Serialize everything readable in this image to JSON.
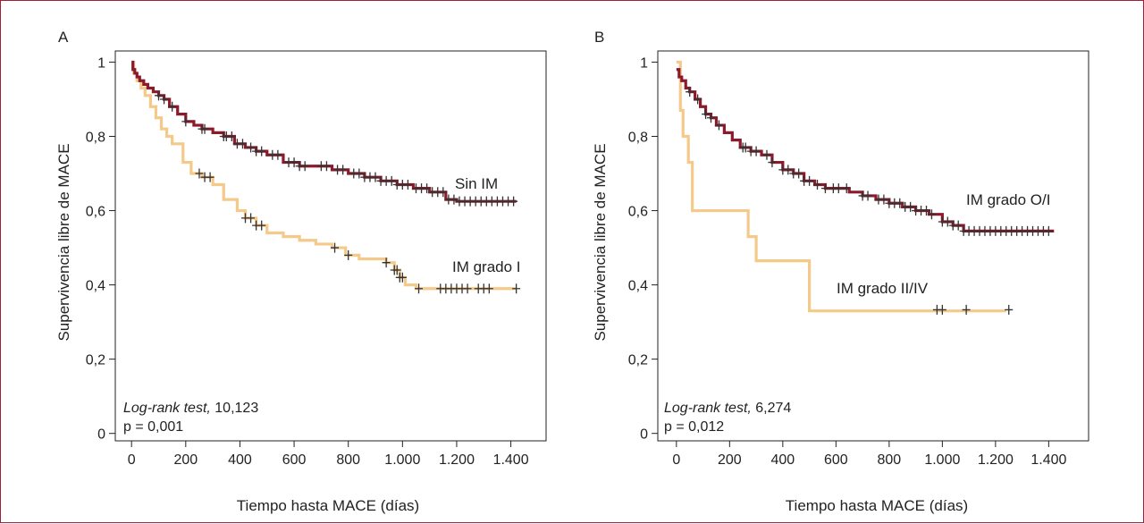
{
  "colors": {
    "frame": "#a0203a",
    "series_dark": "#8b1a2b",
    "series_light": "#f5c98a",
    "censor": "#333333"
  },
  "chart_data": [
    {
      "panel": "A",
      "type": "line",
      "xlabel": "Tiempo hasta MACE (días)",
      "ylabel": "Supervivencia libre de MACE",
      "xlim": [
        -60,
        1530
      ],
      "ylim": [
        -0.02,
        1.03
      ],
      "xticks": [
        0,
        200,
        400,
        600,
        800,
        1000,
        1200,
        1400
      ],
      "xtick_labels": [
        "0",
        "200",
        "400",
        "600",
        "800",
        "1.000",
        "1.200",
        "1.400"
      ],
      "yticks": [
        0,
        0.2,
        0.4,
        0.6,
        0.8,
        1
      ],
      "ytick_labels": [
        "0",
        "0,2",
        "0,4",
        "0,6",
        "0,8",
        "1"
      ],
      "annotation": {
        "test": "Log-rank test,",
        "stat": " 10,123",
        "p": "p = 0,001"
      },
      "series": [
        {
          "name": "Sin IM",
          "color": "#8b1a2b",
          "x": [
            0,
            5,
            12,
            20,
            30,
            45,
            60,
            80,
            100,
            120,
            140,
            170,
            200,
            230,
            260,
            300,
            340,
            380,
            420,
            460,
            500,
            560,
            620,
            680,
            740,
            800,
            860,
            920,
            980,
            1040,
            1100,
            1160,
            1200,
            1420
          ],
          "y": [
            1.0,
            0.98,
            0.97,
            0.96,
            0.95,
            0.94,
            0.93,
            0.92,
            0.91,
            0.9,
            0.88,
            0.86,
            0.84,
            0.83,
            0.82,
            0.81,
            0.8,
            0.78,
            0.77,
            0.76,
            0.75,
            0.73,
            0.72,
            0.72,
            0.71,
            0.7,
            0.69,
            0.68,
            0.67,
            0.66,
            0.65,
            0.63,
            0.625,
            0.625
          ],
          "censor_x": [
            100,
            120,
            150,
            200,
            260,
            270,
            340,
            350,
            370,
            390,
            410,
            440,
            460,
            480,
            520,
            540,
            580,
            600,
            620,
            640,
            700,
            720,
            760,
            780,
            820,
            840,
            860,
            880,
            900,
            920,
            940,
            960,
            980,
            1000,
            1020,
            1050,
            1070,
            1090,
            1110,
            1130,
            1150,
            1170,
            1190,
            1210,
            1230,
            1250,
            1270,
            1290,
            1310,
            1330,
            1350,
            1370,
            1390,
            1410
          ],
          "end_label": "Sin IM"
        },
        {
          "name": "IM grado I",
          "color": "#f5c98a",
          "x": [
            0,
            8,
            20,
            35,
            50,
            70,
            90,
            110,
            130,
            150,
            190,
            220,
            260,
            300,
            340,
            390,
            420,
            460,
            500,
            560,
            620,
            680,
            740,
            790,
            840,
            880,
            940,
            970,
            990,
            1010,
            1050,
            1420
          ],
          "y": [
            1.0,
            0.97,
            0.95,
            0.93,
            0.91,
            0.88,
            0.85,
            0.82,
            0.8,
            0.78,
            0.73,
            0.7,
            0.69,
            0.67,
            0.63,
            0.6,
            0.58,
            0.56,
            0.54,
            0.53,
            0.52,
            0.51,
            0.5,
            0.48,
            0.47,
            0.47,
            0.46,
            0.44,
            0.42,
            0.4,
            0.39,
            0.39
          ],
          "censor_x": [
            250,
            270,
            290,
            420,
            440,
            460,
            480,
            750,
            800,
            940,
            970,
            980,
            990,
            1000,
            1060,
            1140,
            1160,
            1180,
            1200,
            1220,
            1240,
            1280,
            1300,
            1320,
            1420
          ],
          "end_label": "IM grado I"
        }
      ]
    },
    {
      "panel": "B",
      "type": "line",
      "xlabel": "Tiempo hasta MACE (días)",
      "ylabel": "Supervivencia libre de MACE",
      "xlim": [
        -70,
        1550
      ],
      "ylim": [
        -0.02,
        1.03
      ],
      "xticks": [
        0,
        200,
        400,
        600,
        800,
        1000,
        1200,
        1400
      ],
      "xtick_labels": [
        "0",
        "200",
        "400",
        "600",
        "800",
        "1.000",
        "1.200",
        "1.400"
      ],
      "yticks": [
        0,
        0.2,
        0.4,
        0.6,
        0.8,
        1
      ],
      "ytick_labels": [
        "0",
        "0,2",
        "0,4",
        "0,6",
        "0,8",
        "1"
      ],
      "annotation": {
        "test": "Log-rank test,",
        "stat": " 6,274",
        "p": "p = 0,012"
      },
      "series": [
        {
          "name": "IM grado O/I",
          "color": "#8b1a2b",
          "x": [
            0,
            10,
            20,
            35,
            50,
            70,
            90,
            110,
            130,
            150,
            180,
            210,
            240,
            280,
            320,
            360,
            400,
            440,
            480,
            520,
            560,
            600,
            650,
            700,
            750,
            800,
            850,
            900,
            950,
            1000,
            1040,
            1080,
            1420
          ],
          "y": [
            0.98,
            0.96,
            0.95,
            0.93,
            0.92,
            0.9,
            0.88,
            0.86,
            0.85,
            0.83,
            0.81,
            0.79,
            0.77,
            0.76,
            0.75,
            0.73,
            0.71,
            0.7,
            0.68,
            0.67,
            0.66,
            0.66,
            0.65,
            0.64,
            0.63,
            0.62,
            0.61,
            0.6,
            0.59,
            0.57,
            0.56,
            0.545,
            0.545
          ],
          "censor_x": [
            50,
            80,
            110,
            130,
            160,
            250,
            260,
            280,
            300,
            340,
            360,
            400,
            420,
            440,
            460,
            480,
            500,
            530,
            560,
            590,
            610,
            640,
            700,
            720,
            760,
            780,
            800,
            820,
            840,
            860,
            880,
            900,
            920,
            940,
            960,
            1000,
            1020,
            1040,
            1060,
            1080,
            1100,
            1120,
            1140,
            1160,
            1180,
            1200,
            1220,
            1240,
            1260,
            1280,
            1300,
            1320,
            1340,
            1360,
            1380,
            1400
          ],
          "end_label": "IM grado O/I"
        },
        {
          "name": "IM grado II/IV",
          "color": "#f5c98a",
          "x": [
            0,
            15,
            25,
            45,
            60,
            150,
            270,
            300,
            390,
            500,
            1240
          ],
          "y": [
            1.0,
            0.87,
            0.8,
            0.73,
            0.6,
            0.6,
            0.53,
            0.465,
            0.465,
            0.33,
            0.33
          ],
          "censor_x": [
            980,
            1000,
            1090,
            1250
          ],
          "censor_y": 0.333,
          "end_label": "IM grado II/IV"
        }
      ]
    }
  ],
  "panels": {
    "a": {
      "letter": "A"
    },
    "b": {
      "letter": "B"
    }
  }
}
